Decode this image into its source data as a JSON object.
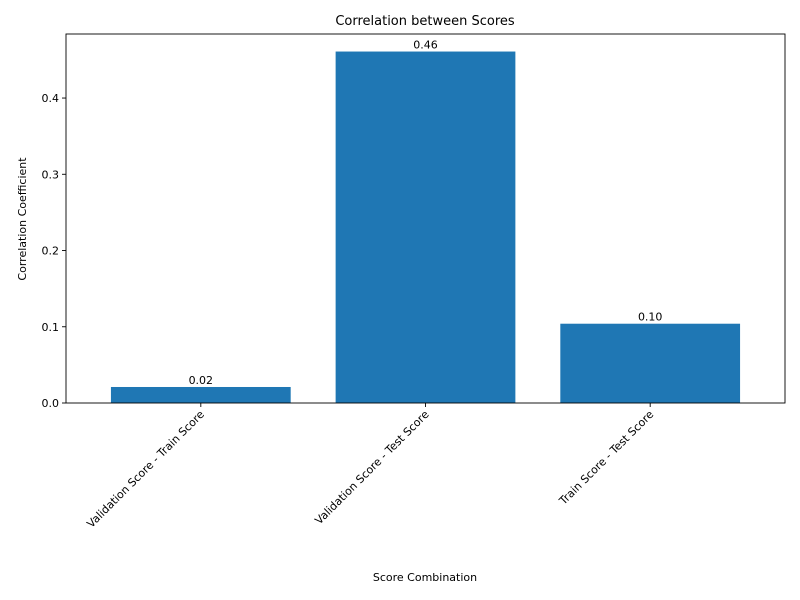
{
  "chart_data": {
    "type": "bar",
    "title": "Correlation between Scores",
    "xlabel": "Score Combination",
    "ylabel": "Correlation Coefficient",
    "categories": [
      "Validation Score - Train Score",
      "Validation Score - Test Score",
      "Train Score - Test Score"
    ],
    "values": [
      0.021,
      0.461,
      0.104
    ],
    "data_labels": [
      "0.02",
      "0.46",
      "0.10"
    ],
    "ylim": [
      0,
      0.484
    ],
    "yticks": [
      0.0,
      0.1,
      0.2,
      0.3,
      0.4
    ],
    "ytick_labels": [
      "0.0",
      "0.1",
      "0.2",
      "0.3",
      "0.4"
    ],
    "bar_color": "#1f77b4",
    "grid": false
  }
}
